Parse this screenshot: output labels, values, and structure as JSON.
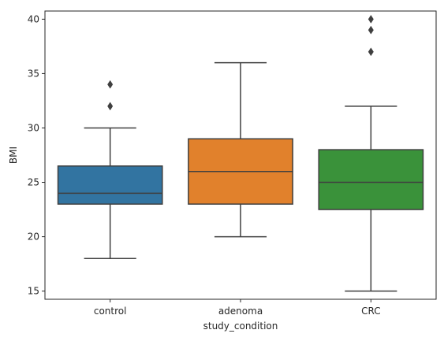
{
  "chart_data": {
    "type": "box",
    "xlabel": "study_condition",
    "ylabel": "BMI",
    "ylim": [
      14.25,
      40.75
    ],
    "yticks": [
      15,
      20,
      25,
      30,
      35,
      40
    ],
    "grid": false,
    "categories": [
      "control",
      "adenoma",
      "CRC"
    ],
    "boxes": [
      {
        "category": "control",
        "color": "#3274a1",
        "whisker_low": 18,
        "q1": 23,
        "median": 24,
        "q3": 26.5,
        "whisker_high": 30,
        "outliers": [
          32,
          34
        ]
      },
      {
        "category": "adenoma",
        "color": "#e1812c",
        "whisker_low": 20,
        "q1": 23,
        "median": 26,
        "q3": 29,
        "whisker_high": 36,
        "outliers": []
      },
      {
        "category": "CRC",
        "color": "#3a923a",
        "whisker_low": 15,
        "q1": 22.5,
        "median": 25,
        "q3": 28,
        "whisker_high": 32,
        "outliers": [
          37,
          39,
          40
        ]
      }
    ]
  }
}
